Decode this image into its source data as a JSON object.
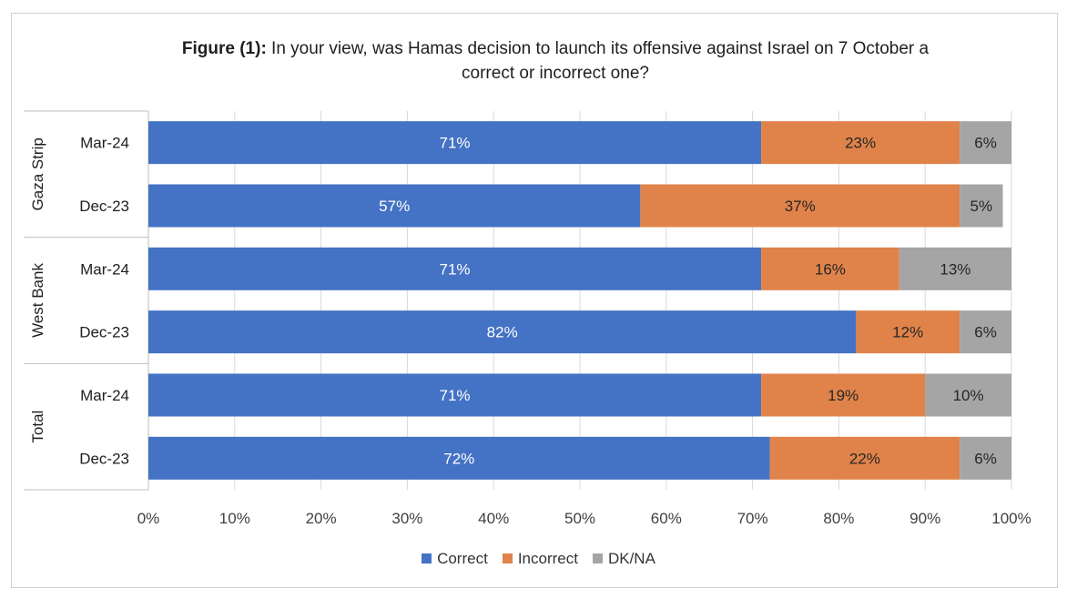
{
  "title": {
    "bold_prefix": "Figure (1):",
    "text": " In your view, was Hamas decision to launch its offensive against Israel on 7 October a correct or incorrect one?"
  },
  "chart_data": {
    "type": "bar",
    "orientation": "horizontal",
    "stacked": true,
    "groups": [
      {
        "name": "Gaza Strip",
        "rows": [
          "Mar-24",
          "Dec-23"
        ]
      },
      {
        "name": "West Bank",
        "rows": [
          "Mar-24",
          "Dec-23"
        ]
      },
      {
        "name": "Total",
        "rows": [
          "Mar-24",
          "Dec-23"
        ]
      }
    ],
    "series": [
      {
        "name": "Correct",
        "color": "#4472C4",
        "label_color": "#ffffff",
        "values": [
          71,
          57,
          71,
          82,
          71,
          72
        ],
        "labels": [
          "71%",
          "57%",
          "71%",
          "82%",
          "71%",
          "72%"
        ]
      },
      {
        "name": "Incorrect",
        "color": "#E0834A",
        "label_color": "#262626",
        "values": [
          23,
          37,
          16,
          12,
          19,
          22
        ],
        "labels": [
          "23%",
          "37%",
          "16%",
          "12%",
          "19%",
          "22%"
        ]
      },
      {
        "name": "DK/NA",
        "color": "#A5A5A5",
        "label_color": "#262626",
        "values": [
          6,
          5,
          13,
          6,
          10,
          6
        ],
        "labels": [
          "6%",
          "5%",
          "13%",
          "6%",
          "10%",
          "6%"
        ]
      }
    ],
    "xlim": [
      0,
      100
    ],
    "xticks": [
      "0%",
      "10%",
      "20%",
      "30%",
      "40%",
      "50%",
      "60%",
      "70%",
      "80%",
      "90%",
      "100%"
    ],
    "grid": true,
    "legend_position": "bottom"
  }
}
